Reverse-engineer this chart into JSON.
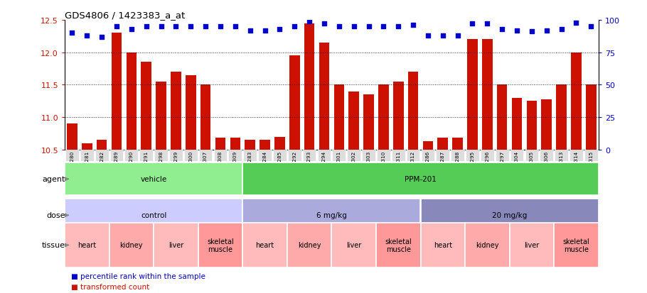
{
  "title": "GDS4806 / 1423383_a_at",
  "samples": [
    "GSM783280",
    "GSM783281",
    "GSM783282",
    "GSM783289",
    "GSM783290",
    "GSM783291",
    "GSM783298",
    "GSM783299",
    "GSM783300",
    "GSM783307",
    "GSM783308",
    "GSM783309",
    "GSM783283",
    "GSM783284",
    "GSM783285",
    "GSM783292",
    "GSM783293",
    "GSM783294",
    "GSM783301",
    "GSM783302",
    "GSM783303",
    "GSM783310",
    "GSM783311",
    "GSM783312",
    "GSM783286",
    "GSM783287",
    "GSM783288",
    "GSM783295",
    "GSM783296",
    "GSM783297",
    "GSM783304",
    "GSM783305",
    "GSM783306",
    "GSM783313",
    "GSM783314",
    "GSM783315"
  ],
  "bar_values": [
    10.9,
    10.6,
    10.65,
    12.3,
    12.0,
    11.85,
    11.55,
    11.7,
    11.65,
    11.5,
    10.68,
    10.68,
    10.65,
    10.65,
    10.7,
    11.95,
    12.45,
    12.15,
    11.5,
    11.4,
    11.35,
    11.5,
    11.55,
    11.7,
    10.63,
    10.68,
    10.68,
    12.2,
    12.2,
    11.5,
    11.3,
    11.25,
    11.28,
    11.5,
    12.0,
    11.5
  ],
  "percentile_values": [
    90,
    88,
    87,
    95,
    93,
    95,
    95,
    95,
    95,
    95,
    95,
    95,
    92,
    92,
    93,
    95,
    99,
    97,
    95,
    95,
    95,
    95,
    95,
    96,
    88,
    88,
    88,
    97,
    97,
    93,
    92,
    91,
    92,
    93,
    98,
    95
  ],
  "bar_color": "#cc1100",
  "dot_color": "#0000cc",
  "ylim_left": [
    10.5,
    12.5
  ],
  "ylim_right": [
    0,
    100
  ],
  "yticks_left": [
    10.5,
    11.0,
    11.5,
    12.0,
    12.5
  ],
  "yticks_right": [
    0,
    25,
    50,
    75,
    100
  ],
  "grid_lines": [
    11.0,
    11.5,
    12.0
  ],
  "agent_groups": [
    {
      "label": "vehicle",
      "start": 0,
      "end": 12,
      "color": "#90ee90"
    },
    {
      "label": "PPM-201",
      "start": 12,
      "end": 36,
      "color": "#55cc55"
    }
  ],
  "dose_groups": [
    {
      "label": "control",
      "start": 0,
      "end": 12,
      "color": "#ccccff"
    },
    {
      "label": "6 mg/kg",
      "start": 12,
      "end": 24,
      "color": "#aaaadd"
    },
    {
      "label": "20 mg/kg",
      "start": 24,
      "end": 36,
      "color": "#8888bb"
    }
  ],
  "tissue_groups": [
    {
      "label": "heart",
      "start": 0,
      "end": 3,
      "color": "#ffbbbb"
    },
    {
      "label": "kidney",
      "start": 3,
      "end": 6,
      "color": "#ffaaaa"
    },
    {
      "label": "liver",
      "start": 6,
      "end": 9,
      "color": "#ffbbbb"
    },
    {
      "label": "skeletal\nmuscle",
      "start": 9,
      "end": 12,
      "color": "#ff9999"
    },
    {
      "label": "heart",
      "start": 12,
      "end": 15,
      "color": "#ffbbbb"
    },
    {
      "label": "kidney",
      "start": 15,
      "end": 18,
      "color": "#ffaaaa"
    },
    {
      "label": "liver",
      "start": 18,
      "end": 21,
      "color": "#ffbbbb"
    },
    {
      "label": "skeletal\nmuscle",
      "start": 21,
      "end": 24,
      "color": "#ff9999"
    },
    {
      "label": "heart",
      "start": 24,
      "end": 27,
      "color": "#ffbbbb"
    },
    {
      "label": "kidney",
      "start": 27,
      "end": 30,
      "color": "#ffaaaa"
    },
    {
      "label": "liver",
      "start": 30,
      "end": 33,
      "color": "#ffbbbb"
    },
    {
      "label": "skeletal\nmuscle",
      "start": 33,
      "end": 36,
      "color": "#ff9999"
    }
  ],
  "legend_items": [
    {
      "label": "transformed count",
      "color": "#cc1100"
    },
    {
      "label": "percentile rank within the sample",
      "color": "#0000cc"
    }
  ]
}
